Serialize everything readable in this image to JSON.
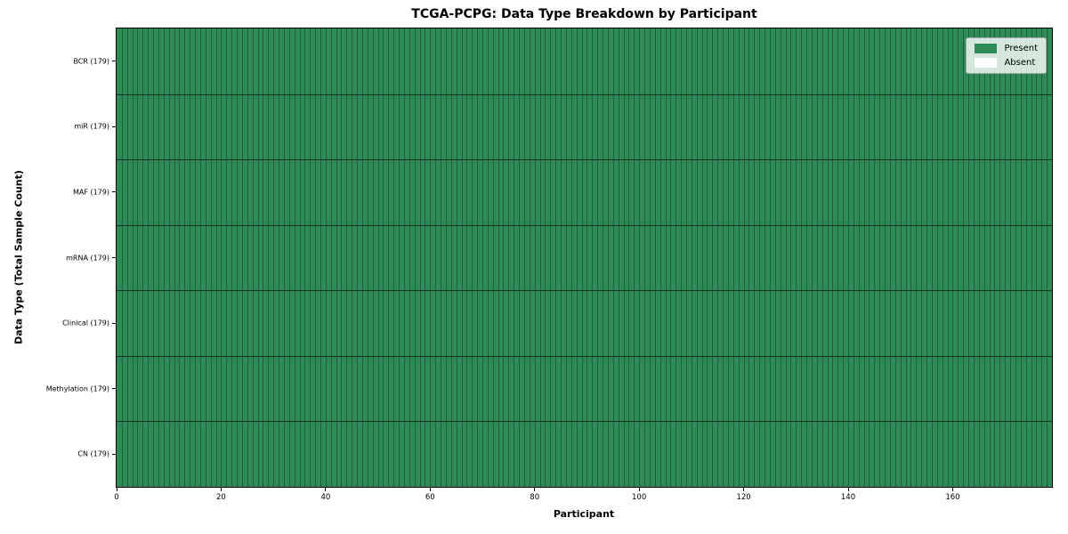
{
  "chart_data": {
    "type": "heatmap",
    "title": "TCGA-PCPG: Data Type Breakdown by Participant",
    "xlabel": "Participant",
    "ylabel": "Data Type (Total Sample Count)",
    "x_range": [
      0,
      179
    ],
    "n_participants": 179,
    "x_ticks": [
      0,
      20,
      40,
      60,
      80,
      100,
      120,
      140,
      160
    ],
    "grid": true,
    "rows": [
      {
        "id": "bcr",
        "data_type": "BCR",
        "label": "BCR (179)",
        "total_samples": 179,
        "present_count": 179,
        "absent_count": 0
      },
      {
        "id": "mir",
        "data_type": "miR",
        "label": "miR (179)",
        "total_samples": 179,
        "present_count": 179,
        "absent_count": 0
      },
      {
        "id": "maf",
        "data_type": "MAF",
        "label": "MAF (179)",
        "total_samples": 179,
        "present_count": 179,
        "absent_count": 0
      },
      {
        "id": "mrna",
        "data_type": "mRNA",
        "label": "mRNA (179)",
        "total_samples": 179,
        "present_count": 179,
        "absent_count": 0
      },
      {
        "id": "clinical",
        "data_type": "Clinical",
        "label": "Clinical (179)",
        "total_samples": 179,
        "present_count": 179,
        "absent_count": 0
      },
      {
        "id": "methylation",
        "data_type": "Methylation",
        "label": "Methylation (179)",
        "total_samples": 179,
        "present_count": 179,
        "absent_count": 0
      },
      {
        "id": "cn",
        "data_type": "CN",
        "label": "CN (179)",
        "total_samples": 179,
        "present_count": 179,
        "absent_count": 0
      }
    ],
    "legend": {
      "position": "upper right",
      "entries": [
        {
          "id": "present",
          "label": "Present",
          "color": "#2e8b57"
        },
        {
          "id": "absent",
          "label": "Absent",
          "color": "#ffffff"
        }
      ]
    },
    "colors": {
      "present": "#2e8b57",
      "absent": "#ffffff",
      "cell_edge": "#1f5e3b",
      "row_divider": "#16331f",
      "spine": "#000000",
      "legend_bg": "rgba(255,255,255,0.8)",
      "legend_border": "#a8a8a8",
      "text": "#000000"
    }
  }
}
